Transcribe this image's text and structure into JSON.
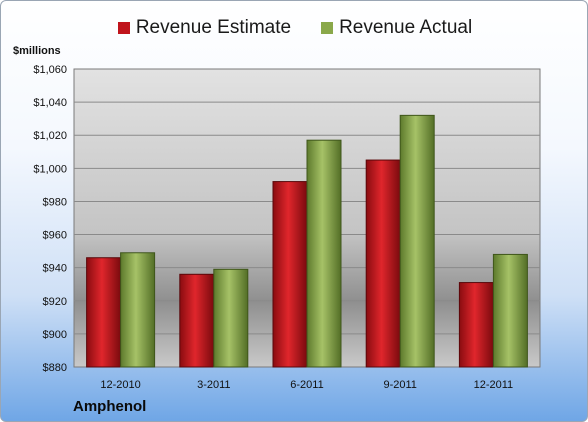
{
  "chart_data": {
    "type": "bar",
    "unit_label": "$millions",
    "company": "Amphenol",
    "categories": [
      "12-2010",
      "3-2011",
      "6-2011",
      "9-2011",
      "12-2011"
    ],
    "series": [
      {
        "name": "Revenue Estimate",
        "color": "#c0141c",
        "values": [
          946,
          936,
          992,
          1005,
          931
        ]
      },
      {
        "name": "Revenue Actual",
        "color": "#8aa84a",
        "values": [
          949,
          939,
          1017,
          1032,
          948
        ]
      }
    ],
    "ylim": [
      880,
      1060
    ],
    "yticks": [
      "$880",
      "$900",
      "$920",
      "$940",
      "$960",
      "$980",
      "$1,000",
      "$1,020",
      "$1,040",
      "$1,060"
    ],
    "ytick_values": [
      880,
      900,
      920,
      940,
      960,
      980,
      1000,
      1020,
      1040,
      1060
    ],
    "grid": true,
    "legend_position": "top"
  }
}
